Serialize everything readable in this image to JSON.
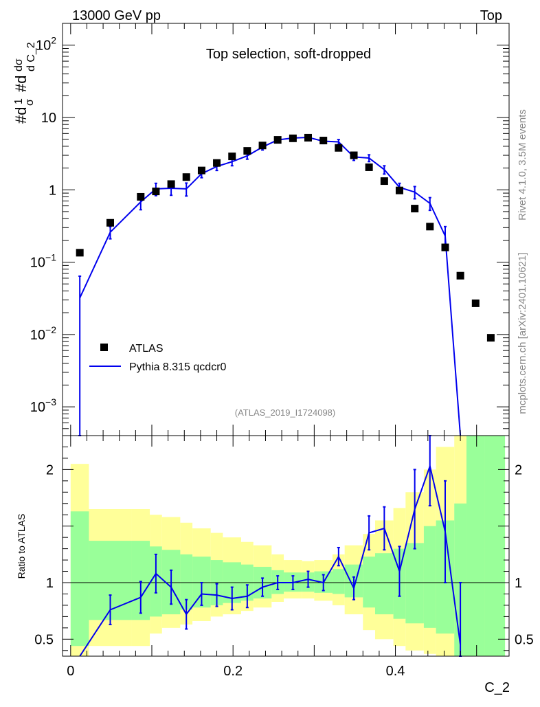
{
  "header": {
    "left": "13000 GeV pp",
    "right": "Top"
  },
  "side_labels": {
    "rivet": "Rivet 4.1.0,  3.5M events",
    "mcplots": "mcplots.cern.ch [arXiv:2401.10621]"
  },
  "chart_data": {
    "type": "scatter",
    "title": "Top selection, soft-dropped",
    "analysis_id": "(ATLAS_2019_I1724098)",
    "xlabel": "C_2",
    "ylabel": "#dσ #d¹/σ dσ/d C_2",
    "ylabel_parts": {
      "a": "#d",
      "one": "1",
      "sigma": "σ",
      "b": "#d",
      "dsigma": "dσ",
      "dc": "d C_2"
    },
    "xlim": [
      -0.01,
      0.54
    ],
    "ylim": [
      0.0004,
      200
    ],
    "yscale": "log",
    "x_ticks": [
      {
        "v": 0,
        "label": "0"
      },
      {
        "v": 0.2,
        "label": "0.2"
      },
      {
        "v": 0.4,
        "label": "0.4"
      }
    ],
    "y_ticks": [
      {
        "v": 0.001,
        "base": "10",
        "exp": "−3"
      },
      {
        "v": 0.01,
        "base": "10",
        "exp": "−2"
      },
      {
        "v": 0.1,
        "base": "10",
        "exp": "−1"
      },
      {
        "v": 1,
        "base": "1",
        "exp": ""
      },
      {
        "v": 10,
        "base": "10",
        "exp": ""
      },
      {
        "v": 100,
        "base": "10",
        "exp": "2"
      }
    ],
    "legend": {
      "placement": "bottom-left",
      "data_label": "ATLAS",
      "mc_label": "Pythia 8.315 qcdcr0"
    },
    "series": [
      {
        "name": "ATLAS",
        "x": [
          0.0113,
          0.0488,
          0.0863,
          0.105,
          0.1238,
          0.1425,
          0.1613,
          0.18,
          0.1988,
          0.2175,
          0.2363,
          0.255,
          0.2738,
          0.2925,
          0.3113,
          0.33,
          0.3488,
          0.3675,
          0.3863,
          0.405,
          0.4238,
          0.4425,
          0.4613,
          0.48,
          0.4988,
          0.5175
        ],
        "y": [
          0.135,
          0.35,
          0.8,
          0.95,
          1.2,
          1.5,
          1.85,
          2.35,
          2.9,
          3.45,
          4.1,
          4.9,
          5.15,
          5.25,
          4.8,
          3.8,
          3.0,
          2.05,
          1.32,
          0.98,
          0.55,
          0.31,
          0.16,
          0.065,
          0.027,
          0.009
        ]
      },
      {
        "name": "Pythia 8.315 qcdcr0",
        "x": [
          0.0113,
          0.0488,
          0.0863,
          0.105,
          0.1238,
          0.1425,
          0.1613,
          0.18,
          0.1988,
          0.2175,
          0.2363,
          0.255,
          0.2738,
          0.2925,
          0.3113,
          0.33,
          0.3488,
          0.3675,
          0.3863,
          0.405,
          0.4238,
          0.4425,
          0.4613,
          0.48
        ],
        "y": [
          0.032,
          0.26,
          0.68,
          1.03,
          1.05,
          1.03,
          1.67,
          2.1,
          2.45,
          2.95,
          3.9,
          4.9,
          5.2,
          5.3,
          4.7,
          4.6,
          2.85,
          2.75,
          1.9,
          1.08,
          0.93,
          0.65,
          0.23,
          0.0003
        ],
        "err": [
          0.032,
          0.05,
          0.15,
          0.2,
          0.21,
          0.21,
          0.2,
          0.25,
          0.3,
          0.3,
          0.35,
          0.35,
          0.35,
          0.35,
          0.35,
          0.35,
          0.3,
          0.3,
          0.25,
          0.15,
          0.18,
          0.13,
          0.08,
          0
        ]
      }
    ],
    "ratio": {
      "ylabel": "Ratio to ATLAS",
      "ylim": [
        0.35,
        2.3
      ],
      "y_ticks": [
        {
          "v": 0.5,
          "label": "0.5"
        },
        {
          "v": 1,
          "label": "1"
        },
        {
          "v": 2,
          "label": "2"
        }
      ],
      "bin_edges": [
        0.0,
        0.0225,
        0.075,
        0.0975,
        0.1125,
        0.135,
        0.15,
        0.1725,
        0.1875,
        0.21,
        0.225,
        0.2475,
        0.2625,
        0.285,
        0.3,
        0.3225,
        0.3375,
        0.36,
        0.375,
        0.3975,
        0.4125,
        0.435,
        0.45,
        0.4725,
        0.4875,
        0.51,
        0.535
      ],
      "band_inner": [
        [
          0.44,
          1.63
        ],
        [
          0.67,
          1.37
        ],
        [
          0.67,
          1.37
        ],
        [
          0.7,
          1.32
        ],
        [
          0.72,
          1.29
        ],
        [
          0.76,
          1.25
        ],
        [
          0.78,
          1.23
        ],
        [
          0.8,
          1.2
        ],
        [
          0.82,
          1.18
        ],
        [
          0.84,
          1.16
        ],
        [
          0.86,
          1.14
        ],
        [
          0.9,
          1.11
        ],
        [
          0.92,
          1.09
        ],
        [
          0.92,
          1.09
        ],
        [
          0.91,
          1.1
        ],
        [
          0.9,
          1.12
        ],
        [
          0.87,
          1.16
        ],
        [
          0.78,
          1.23
        ],
        [
          0.72,
          1.26
        ],
        [
          0.68,
          1.3
        ],
        [
          0.64,
          1.35
        ],
        [
          0.6,
          1.5
        ],
        [
          0.55,
          1.55
        ],
        [
          0.35,
          1.7
        ],
        [
          0.35,
          2.3
        ],
        [
          0.35,
          2.3
        ]
      ],
      "band_outer": [
        [
          0.35,
          2.05
        ],
        [
          0.44,
          1.65
        ],
        [
          0.44,
          1.65
        ],
        [
          0.55,
          1.6
        ],
        [
          0.6,
          1.58
        ],
        [
          0.63,
          1.53
        ],
        [
          0.66,
          1.48
        ],
        [
          0.7,
          1.44
        ],
        [
          0.72,
          1.4
        ],
        [
          0.75,
          1.36
        ],
        [
          0.78,
          1.33
        ],
        [
          0.83,
          1.25
        ],
        [
          0.86,
          1.2
        ],
        [
          0.86,
          1.19
        ],
        [
          0.84,
          1.2
        ],
        [
          0.8,
          1.25
        ],
        [
          0.72,
          1.33
        ],
        [
          0.58,
          1.43
        ],
        [
          0.5,
          1.55
        ],
        [
          0.44,
          1.66
        ],
        [
          0.4,
          1.8
        ],
        [
          0.37,
          2.0
        ],
        [
          0.35,
          2.2
        ],
        [
          0.35,
          2.3
        ],
        [
          0.35,
          2.3
        ],
        [
          0.35,
          2.15
        ]
      ],
      "x": [
        0.0113,
        0.0488,
        0.0863,
        0.105,
        0.1238,
        0.1425,
        0.1613,
        0.18,
        0.1988,
        0.2175,
        0.2363,
        0.255,
        0.2738,
        0.2925,
        0.3113,
        0.33,
        0.3488,
        0.3675,
        0.3863,
        0.405,
        0.4238,
        0.4425,
        0.4613,
        0.48
      ],
      "y": [
        0.25,
        0.76,
        0.87,
        1.08,
        0.96,
        0.72,
        0.9,
        0.89,
        0.86,
        0.88,
        0.96,
        1.0,
        1.0,
        1.03,
        1.0,
        1.23,
        0.95,
        1.44,
        1.48,
        1.1,
        1.65,
        2.03,
        1.45,
        0.45
      ],
      "err": [
        0.0,
        0.13,
        0.14,
        0.17,
        0.15,
        0.13,
        0.1,
        0.1,
        0.1,
        0.1,
        0.08,
        0.06,
        0.06,
        0.07,
        0.07,
        0.08,
        0.1,
        0.15,
        0.19,
        0.22,
        0.35,
        0.35,
        0.45,
        0.55
      ]
    }
  }
}
